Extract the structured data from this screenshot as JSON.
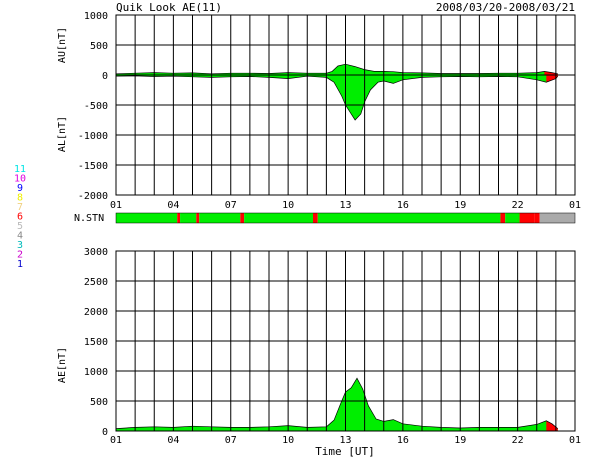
{
  "header": {
    "title": "Quik Look AE(11)",
    "date_range": "2008/03/20-2008/03/21"
  },
  "x_axis": {
    "label": "Time [UT]",
    "tick_labels": [
      "01",
      "04",
      "07",
      "10",
      "13",
      "16",
      "19",
      "22",
      "01"
    ],
    "range_hours": [
      0,
      24
    ]
  },
  "station_legend": {
    "items": [
      {
        "num": "11",
        "color": "#00e5e5"
      },
      {
        "num": "10",
        "color": "#e000e0"
      },
      {
        "num": "9",
        "color": "#0000ff"
      },
      {
        "num": "8",
        "color": "#f0f000"
      },
      {
        "num": "7",
        "color": "#f0d080"
      },
      {
        "num": "6",
        "color": "#ff0000"
      },
      {
        "num": "5",
        "color": "#bbbbbb"
      },
      {
        "num": "4",
        "color": "#888888"
      },
      {
        "num": "3",
        "color": "#00bbbb"
      },
      {
        "num": "2",
        "color": "#cc00cc"
      },
      {
        "num": "1",
        "color": "#0000cc"
      }
    ]
  },
  "colors": {
    "fill_normal": "#00ee00",
    "fill_low": "#ff0000",
    "stn_missing": "#aaaaaa",
    "grid": "#000000"
  },
  "chart_data": [
    {
      "type": "area",
      "name": "AU/AL",
      "ylabel_top": "AU[nT]",
      "ylabel_bottom": "AL[nT]",
      "ylim": [
        -2000,
        1000
      ],
      "yticks": [
        1000,
        500,
        0,
        -500,
        -1000,
        -1500,
        -2000
      ],
      "au_points": [
        [
          0,
          20
        ],
        [
          1,
          30
        ],
        [
          2,
          40
        ],
        [
          3,
          30
        ],
        [
          4,
          35
        ],
        [
          5,
          20
        ],
        [
          6,
          30
        ],
        [
          7,
          30
        ],
        [
          8,
          25
        ],
        [
          9,
          40
        ],
        [
          10,
          30
        ],
        [
          11,
          30
        ],
        [
          11.3,
          60
        ],
        [
          11.6,
          150
        ],
        [
          12,
          180
        ],
        [
          12.5,
          140
        ],
        [
          13,
          90
        ],
        [
          13.5,
          60
        ],
        [
          14,
          60
        ],
        [
          14.5,
          55
        ],
        [
          15,
          40
        ],
        [
          16,
          35
        ],
        [
          17,
          25
        ],
        [
          18,
          25
        ],
        [
          19,
          25
        ],
        [
          20,
          30
        ],
        [
          21,
          30
        ],
        [
          22,
          40
        ],
        [
          22.4,
          60
        ],
        [
          22.8,
          40
        ],
        [
          23.1,
          20
        ]
      ],
      "al_points": [
        [
          0,
          -20
        ],
        [
          1,
          -15
        ],
        [
          2,
          -25
        ],
        [
          3,
          -20
        ],
        [
          4,
          -30
        ],
        [
          5,
          -40
        ],
        [
          6,
          -30
        ],
        [
          7,
          -25
        ],
        [
          8,
          -40
        ],
        [
          9,
          -60
        ],
        [
          10,
          -20
        ],
        [
          11,
          -40
        ],
        [
          11.4,
          -120
        ],
        [
          11.8,
          -350
        ],
        [
          12,
          -500
        ],
        [
          12.2,
          -600
        ],
        [
          12.5,
          -750
        ],
        [
          12.8,
          -650
        ],
        [
          13,
          -450
        ],
        [
          13.3,
          -250
        ],
        [
          13.7,
          -120
        ],
        [
          14,
          -100
        ],
        [
          14.5,
          -140
        ],
        [
          15,
          -80
        ],
        [
          16,
          -40
        ],
        [
          17,
          -30
        ],
        [
          18,
          -25
        ],
        [
          19,
          -30
        ],
        [
          20,
          -25
        ],
        [
          21,
          -30
        ],
        [
          22,
          -80
        ],
        [
          22.5,
          -120
        ],
        [
          23,
          -60
        ],
        [
          23.1,
          -20
        ]
      ]
    },
    {
      "type": "bar",
      "name": "N.STN",
      "label": "N.STN",
      "segments": [
        [
          0,
          3.2,
          6
        ],
        [
          3.2,
          3.35,
          5
        ],
        [
          3.35,
          4.2,
          6
        ],
        [
          4.2,
          4.35,
          5
        ],
        [
          4.35,
          6.5,
          6
        ],
        [
          6.5,
          6.7,
          5
        ],
        [
          6.7,
          10.3,
          6
        ],
        [
          10.3,
          10.55,
          5
        ],
        [
          10.55,
          20.1,
          6
        ],
        [
          20.1,
          20.35,
          5
        ],
        [
          20.35,
          21.1,
          6
        ],
        [
          21.1,
          21.9,
          5
        ],
        [
          21.9,
          22.15,
          4
        ],
        [
          22.15,
          24,
          0
        ]
      ]
    },
    {
      "type": "area",
      "name": "AE",
      "ylabel": "AE[nT]",
      "ylim": [
        0,
        3000
      ],
      "yticks": [
        3000,
        2500,
        2000,
        1500,
        1000,
        500,
        0
      ],
      "points": [
        [
          0,
          40
        ],
        [
          1,
          60
        ],
        [
          2,
          70
        ],
        [
          3,
          60
        ],
        [
          4,
          80
        ],
        [
          5,
          70
        ],
        [
          6,
          60
        ],
        [
          7,
          60
        ],
        [
          8,
          70
        ],
        [
          9,
          90
        ],
        [
          10,
          60
        ],
        [
          11,
          70
        ],
        [
          11.4,
          180
        ],
        [
          11.8,
          500
        ],
        [
          12,
          650
        ],
        [
          12.3,
          720
        ],
        [
          12.6,
          880
        ],
        [
          12.9,
          700
        ],
        [
          13.2,
          420
        ],
        [
          13.6,
          200
        ],
        [
          14,
          160
        ],
        [
          14.5,
          190
        ],
        [
          15,
          120
        ],
        [
          16,
          80
        ],
        [
          17,
          60
        ],
        [
          18,
          50
        ],
        [
          19,
          60
        ],
        [
          20,
          60
        ],
        [
          21,
          60
        ],
        [
          22,
          110
        ],
        [
          22.5,
          170
        ],
        [
          22.8,
          120
        ],
        [
          23.1,
          40
        ]
      ]
    }
  ]
}
